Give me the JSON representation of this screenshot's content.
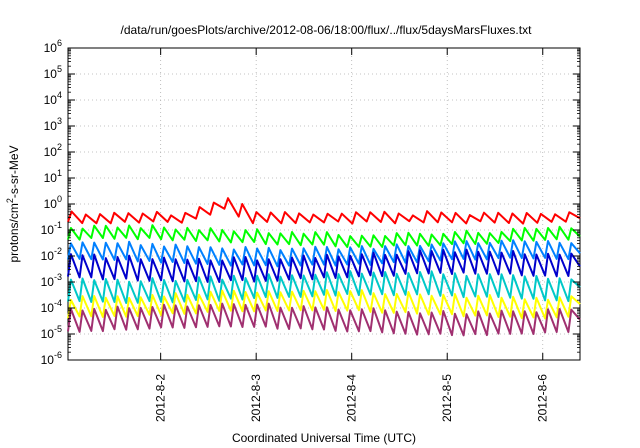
{
  "chart_data": {
    "type": "line",
    "title": "/data/run/goesPlots/archive/2012-08-06/18:00/flux/../flux/5daysMarsFluxes.txt",
    "xlabel": "Coordinated Universal Time (UTC)",
    "ylabel_parts": [
      "protons/cm",
      "2",
      "-s-sr-MeV"
    ],
    "yscale": "log",
    "ylim_exp": [
      -6,
      6
    ],
    "y_tick_exponents": [
      -6,
      -5,
      -4,
      -3,
      -2,
      -1,
      0,
      1,
      2,
      3,
      4,
      5,
      6
    ],
    "xlim": [
      0.0,
      5.36
    ],
    "x_ticks": [
      {
        "x": 0.97,
        "label": "2012-8-2"
      },
      {
        "x": 1.97,
        "label": "2012-8-3"
      },
      {
        "x": 2.97,
        "label": "2012-8-4"
      },
      {
        "x": 3.97,
        "label": "2012-8-5"
      },
      {
        "x": 4.97,
        "label": "2012-8-6"
      }
    ],
    "grid": true,
    "series": [
      {
        "color": "#ff0000",
        "pattern": "sparse",
        "log10_base": -0.55,
        "log10_amp": 0.35,
        "teeth": 36,
        "events": [
          {
            "x": 1.42,
            "log10": 0.0
          },
          {
            "x": 1.62,
            "log10": 0.25
          }
        ]
      },
      {
        "color": "#00ff00",
        "pattern": "sawtooth",
        "log10_base": -1.25,
        "log10_amp": 0.45,
        "teeth": 44
      },
      {
        "color": "#0080ff",
        "pattern": "sawtooth",
        "log10_base": -1.9,
        "log10_amp": 0.65,
        "teeth": 44
      },
      {
        "color": "#0000cc",
        "pattern": "sawtooth",
        "log10_base": -2.4,
        "log10_amp": 0.85,
        "teeth": 44
      },
      {
        "color": "#00c8c8",
        "pattern": "sawtooth",
        "log10_base": -3.2,
        "log10_amp": 0.85,
        "teeth": 44
      },
      {
        "color": "#ffff00",
        "pattern": "sawtooth",
        "log10_base": -3.85,
        "log10_amp": 0.75,
        "teeth": 44
      },
      {
        "color": "#a03070",
        "pattern": "sawtooth",
        "log10_base": -4.45,
        "log10_amp": 0.85,
        "teeth": 44
      }
    ]
  }
}
